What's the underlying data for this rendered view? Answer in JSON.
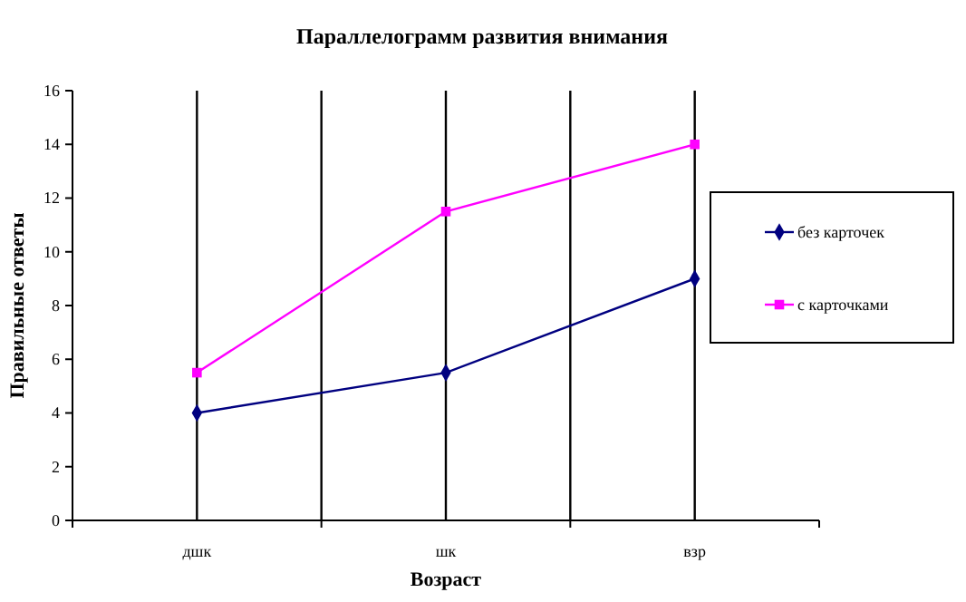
{
  "chart_data": {
    "type": "line",
    "title": "Параллелограмм развития внимания",
    "xlabel": "Возраст",
    "ylabel": "Правильные ответы",
    "categories": [
      "дшк",
      "шк",
      "взр"
    ],
    "series": [
      {
        "name": "без карточек",
        "color": "#000080",
        "values": [
          4,
          5.5,
          9
        ],
        "marker": "diamond"
      },
      {
        "name": "с карточками",
        "color": "#ff00ff",
        "values": [
          5.5,
          11.5,
          14
        ],
        "marker": "square"
      }
    ],
    "ylim": [
      0,
      16
    ],
    "yticks": [
      0,
      2,
      4,
      6,
      8,
      10,
      12,
      14,
      16
    ],
    "grid": "x",
    "legend": "right"
  }
}
